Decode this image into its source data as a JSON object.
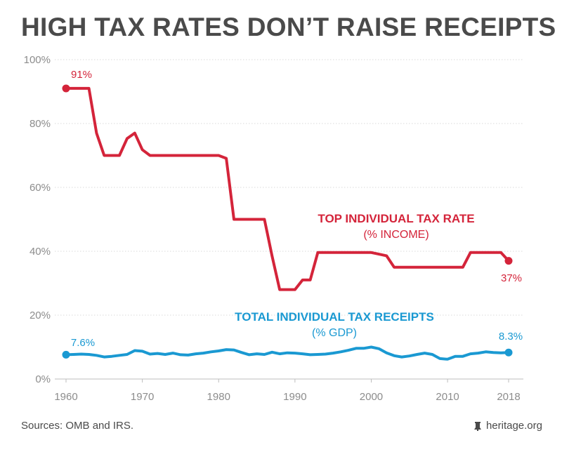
{
  "title": "HIGH TAX RATES DON’T RAISE RECEIPTS",
  "footer": {
    "source": "Sources: OMB and IRS.",
    "brand": "heritage.org"
  },
  "colors": {
    "rate": "#d4243a",
    "receipts": "#1a99d2",
    "text": "#4a4a4a",
    "grid": "#d9d9d9",
    "axis": "#8c8c8c"
  },
  "chart_data": {
    "type": "line",
    "xlim": [
      1960,
      2018
    ],
    "ylim": [
      0,
      100
    ],
    "y_ticks": [
      0,
      20,
      40,
      60,
      80,
      100
    ],
    "y_tick_labels": [
      "0%",
      "20%",
      "40%",
      "60%",
      "80%",
      "100%"
    ],
    "x_ticks": [
      1960,
      1970,
      1980,
      1990,
      2000,
      2010,
      2018
    ],
    "x_tick_labels": [
      "1960",
      "1970",
      "1980",
      "1990",
      "2000",
      "2010",
      "2018"
    ],
    "grid": "horizontal",
    "series": [
      {
        "name": "TOP INDIVIDUAL TAX RATE",
        "subtitle": "(% INCOME)",
        "color": "#d4243a",
        "start_label": "91%",
        "end_label": "37%",
        "x": [
          1960,
          1961,
          1962,
          1963,
          1964,
          1965,
          1966,
          1967,
          1968,
          1969,
          1970,
          1971,
          1972,
          1973,
          1974,
          1975,
          1976,
          1977,
          1978,
          1979,
          1980,
          1981,
          1982,
          1983,
          1984,
          1985,
          1986,
          1987,
          1988,
          1989,
          1990,
          1991,
          1992,
          1993,
          1994,
          1995,
          1996,
          1997,
          1998,
          1999,
          2000,
          2001,
          2002,
          2003,
          2004,
          2005,
          2006,
          2007,
          2008,
          2009,
          2010,
          2011,
          2012,
          2013,
          2014,
          2015,
          2016,
          2017,
          2018
        ],
        "y": [
          91,
          91,
          91,
          91,
          77,
          70,
          70,
          70,
          75.3,
          77,
          71.8,
          70,
          70,
          70,
          70,
          70,
          70,
          70,
          70,
          70,
          70,
          69.1,
          50,
          50,
          50,
          50,
          50,
          38.5,
          28,
          28,
          28,
          31,
          31,
          39.6,
          39.6,
          39.6,
          39.6,
          39.6,
          39.6,
          39.6,
          39.6,
          39.1,
          38.6,
          35,
          35,
          35,
          35,
          35,
          35,
          35,
          35,
          35,
          35,
          39.6,
          39.6,
          39.6,
          39.6,
          39.6,
          37
        ]
      },
      {
        "name": "TOTAL INDIVIDUAL TAX RECEIPTS",
        "subtitle": "(% GDP)",
        "color": "#1a99d2",
        "start_label": "7.6%",
        "end_label": "8.3%",
        "x": [
          1960,
          1961,
          1962,
          1963,
          1964,
          1965,
          1966,
          1967,
          1968,
          1969,
          1970,
          1971,
          1972,
          1973,
          1974,
          1975,
          1976,
          1977,
          1978,
          1979,
          1980,
          1981,
          1982,
          1983,
          1984,
          1985,
          1986,
          1987,
          1988,
          1989,
          1990,
          1991,
          1992,
          1993,
          1994,
          1995,
          1996,
          1997,
          1998,
          1999,
          2000,
          2001,
          2002,
          2003,
          2004,
          2005,
          2006,
          2007,
          2008,
          2009,
          2010,
          2011,
          2012,
          2013,
          2014,
          2015,
          2016,
          2017,
          2018
        ],
        "y": [
          7.6,
          7.7,
          7.8,
          7.7,
          7.4,
          6.9,
          7.1,
          7.4,
          7.7,
          8.9,
          8.7,
          7.8,
          8.0,
          7.7,
          8.1,
          7.6,
          7.5,
          7.9,
          8.1,
          8.5,
          8.8,
          9.2,
          9.1,
          8.3,
          7.6,
          7.9,
          7.7,
          8.4,
          7.9,
          8.2,
          8.1,
          7.9,
          7.6,
          7.7,
          7.8,
          8.1,
          8.5,
          9.0,
          9.6,
          9.6,
          10.0,
          9.5,
          8.2,
          7.3,
          6.9,
          7.2,
          7.7,
          8.1,
          7.7,
          6.4,
          6.2,
          7.1,
          7.1,
          7.9,
          8.1,
          8.5,
          8.3,
          8.2,
          8.3
        ]
      }
    ]
  }
}
